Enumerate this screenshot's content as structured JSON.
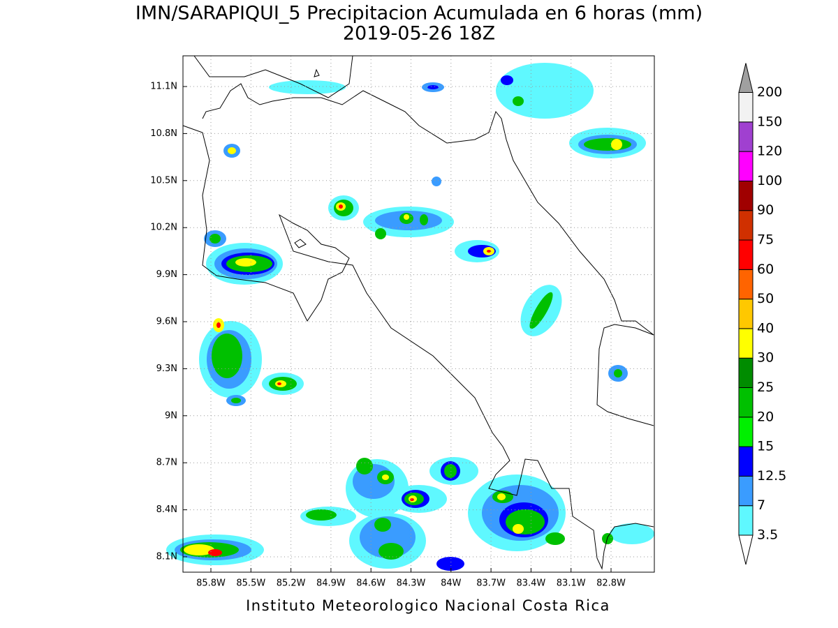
{
  "title": "IMN/SARAPIQUI_5 Precipitacion Acumulada en 6 horas (mm)",
  "subtitle": "2019-05-26 18Z",
  "map": {
    "lat_ticks": [
      "11.1N",
      "10.8N",
      "10.5N",
      "10.2N",
      "9.9N",
      "9.6N",
      "9.3N",
      "9N",
      "8.7N",
      "8.4N",
      "8.1N"
    ],
    "lon_ticks": [
      "85.8W",
      "85.5W",
      "85.2W",
      "84.9W",
      "84.6W",
      "84.3W",
      "84W",
      "83.7W",
      "83.4W",
      "83.1W",
      "82.8W"
    ]
  },
  "colorbar": {
    "levels": [
      3.5,
      7,
      12.5,
      15,
      20,
      25,
      30,
      40,
      50,
      60,
      75,
      90,
      100,
      120,
      150,
      200
    ],
    "colors": [
      "#5ff8ff",
      "#3a9cff",
      "#0000ff",
      "#00f000",
      "#00c000",
      "#008c00",
      "#ffff00",
      "#ffc800",
      "#ff6400",
      "#ff0000",
      "#d03000",
      "#a00000",
      "#ff00ff",
      "#a040d0",
      "#f2f2f2"
    ],
    "under_color": "#ffffff",
    "over_color": "#a0a0a0"
  },
  "footer": "Instituto Meteorologico Nacional Costa Rica"
}
